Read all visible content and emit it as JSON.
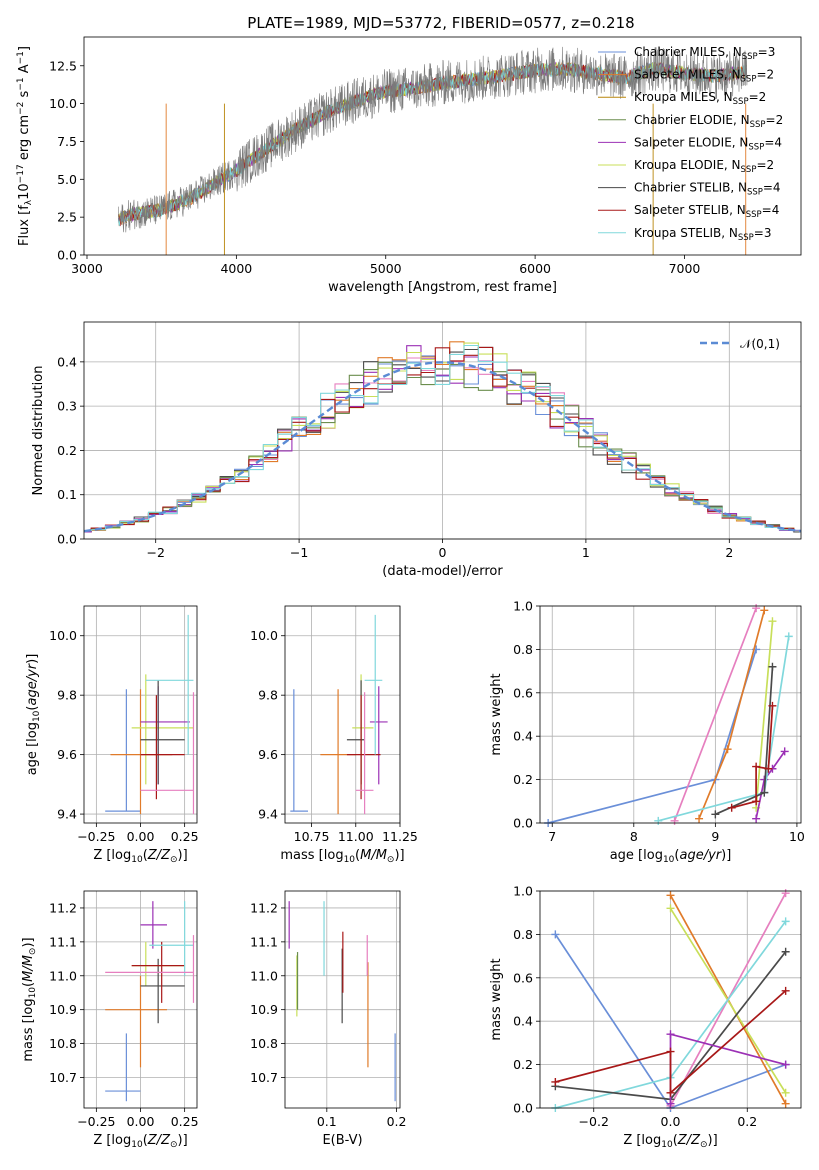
{
  "colors": {
    "Chabrier MILES": "#6a8fd8",
    "Salpeter MILES": "#e07b2a",
    "Kroupa MILES": "#b8860b",
    "Chabrier ELODIE": "#6b8e4e",
    "Salpeter ELODIE": "#9b30b5",
    "Kroupa ELODIE": "#c8df5a",
    "Chabrier STELIB": "#4a4a4a",
    "Salpeter STELIB": "#a81818",
    "Kroupa STELIB": "#80d8dc",
    "pink": "#e67fbf",
    "gaussian": "#5b8bd4"
  },
  "chart_data": [
    {
      "id": "spectrum",
      "type": "line",
      "title": "PLATE=1989, MJD=53772, FIBERID=0577, z=0.218",
      "xlabel": "wavelength [Angstrom, rest frame]",
      "ylabel": "Flux [f_λ10⁻¹⁷ erg cm⁻² s⁻¹ A⁻¹]",
      "xlim": [
        2980,
        7780
      ],
      "ylim": [
        0,
        14.4
      ],
      "xticks": [
        3000,
        4000,
        5000,
        6000,
        7000
      ],
      "yticks": [
        0.0,
        2.5,
        5.0,
        7.5,
        10.0,
        12.5
      ],
      "ytick_labels": [
        "0.0",
        "2.5",
        "5.0",
        "7.5",
        "10.0",
        "12.5"
      ],
      "x_range_data": [
        3210,
        7420
      ],
      "continuum_x": [
        3210,
        3300,
        3500,
        3700,
        3900,
        4000,
        4200,
        4400,
        4600,
        4800,
        5000,
        5200,
        5400,
        5600,
        5800,
        6000,
        6200,
        6400,
        6600,
        6800,
        7000,
        7200,
        7420
      ],
      "continuum_y": [
        2.3,
        2.7,
        3.0,
        3.8,
        5.0,
        5.6,
        7.0,
        8.3,
        9.4,
        10.2,
        10.8,
        11.0,
        11.4,
        11.6,
        11.9,
        12.2,
        12.3,
        12.0,
        11.7,
        12.3,
        12.0,
        11.8,
        12.1
      ],
      "legend": [
        {
          "label": "Chabrier MILES, N",
          "sub": "SSP",
          "tail": "=3",
          "color_key": "Chabrier MILES"
        },
        {
          "label": "Salpeter MILES, N",
          "sub": "SSP",
          "tail": "=2",
          "color_key": "Salpeter MILES"
        },
        {
          "label": "Kroupa MILES, N",
          "sub": "SSP",
          "tail": "=2",
          "color_key": "Kroupa MILES"
        },
        {
          "label": "Chabrier ELODIE, N",
          "sub": "SSP",
          "tail": "=2",
          "color_key": "Chabrier ELODIE"
        },
        {
          "label": "Salpeter ELODIE, N",
          "sub": "SSP",
          "tail": "=4",
          "color_key": "Salpeter ELODIE"
        },
        {
          "label": "Kroupa ELODIE, N",
          "sub": "SSP",
          "tail": "=2",
          "color_key": "Kroupa ELODIE"
        },
        {
          "label": "Chabrier STELIB, N",
          "sub": "SSP",
          "tail": "=4",
          "color_key": "Chabrier STELIB"
        },
        {
          "label": "Salpeter STELIB, N",
          "sub": "SSP",
          "tail": "=4",
          "color_key": "Salpeter STELIB"
        },
        {
          "label": "Kroupa STELIB, N",
          "sub": "SSP",
          "tail": "=3",
          "color_key": "Kroupa STELIB"
        }
      ]
    },
    {
      "id": "residuals",
      "type": "line",
      "xlabel": "(data-model)/error",
      "ylabel": "Normed distribution",
      "xlim": [
        -2.5,
        2.5
      ],
      "ylim": [
        0,
        0.49
      ],
      "xticks": [
        -2,
        -1,
        0,
        1,
        2
      ],
      "xtick_labels": [
        "−2",
        "−1",
        "0",
        "1",
        "2"
      ],
      "yticks": [
        0.0,
        0.1,
        0.2,
        0.3,
        0.4
      ],
      "ytick_labels": [
        "0.0",
        "0.1",
        "0.2",
        "0.3",
        "0.4"
      ],
      "grid": true,
      "legend": "𝒩(0,1)",
      "bin_width": 0.1
    },
    {
      "id": "age_vs_Z",
      "type": "scatter",
      "xlabel": "Z [log10(Z/Z☉)]",
      "ylabel": "age  [log10(age/yr)]",
      "xlim": [
        -0.32,
        0.32
      ],
      "ylim": [
        9.37,
        10.1
      ],
      "xticks": [
        -0.25,
        0.0,
        0.25
      ],
      "xtick_labels": [
        "−0.25",
        "0.00",
        "0.25"
      ],
      "yticks": [
        9.4,
        9.6,
        9.8,
        10.0
      ],
      "ytick_labels": [
        "9.4",
        "9.6",
        "9.8",
        "10.0"
      ],
      "points": [
        {
          "c": "Chabrier MILES",
          "x": -0.08,
          "xlo": -0.2,
          "xhi": 0.0,
          "y": 9.41,
          "ylo": 9.41,
          "yhi": 9.82
        },
        {
          "c": "Salpeter MILES",
          "x": 0.0,
          "xlo": -0.17,
          "xhi": 0.18,
          "y": 9.6,
          "ylo": 9.4,
          "yhi": 9.82
        },
        {
          "c": "Kroupa ELODIE",
          "x": 0.03,
          "xlo": -0.05,
          "xhi": 0.3,
          "y": 9.69,
          "ylo": 9.5,
          "yhi": 9.87
        },
        {
          "c": "Salpeter ELODIE",
          "x": 0.1,
          "xlo": -0.0,
          "xhi": 0.28,
          "y": 9.71,
          "ylo": 9.5,
          "yhi": 9.83
        },
        {
          "c": "Chabrier STELIB",
          "x": 0.1,
          "xlo": 0.0,
          "xhi": 0.25,
          "y": 9.65,
          "ylo": 9.5,
          "yhi": 9.85
        },
        {
          "c": "Salpeter STELIB",
          "x": 0.09,
          "xlo": -0.0,
          "xhi": 0.25,
          "y": 9.6,
          "ylo": 9.45,
          "yhi": 9.8
        },
        {
          "c": "Kroupa STELIB",
          "x": 0.27,
          "xlo": 0.03,
          "xhi": 0.3,
          "y": 9.85,
          "ylo": 9.6,
          "yhi": 10.07
        },
        {
          "c": "pink",
          "x": 0.3,
          "xlo": -0.0,
          "xhi": 0.3,
          "y": 9.48,
          "ylo": 9.4,
          "yhi": 9.81
        }
      ]
    },
    {
      "id": "age_vs_mass",
      "type": "scatter",
      "xlabel": "mass [log10(M/M☉)]",
      "ylabel": "",
      "xlim": [
        10.6,
        11.25
      ],
      "ylim": [
        9.37,
        10.1
      ],
      "xticks": [
        10.75,
        11.0,
        11.25
      ],
      "xtick_labels": [
        "10.75",
        "11.00",
        "11.25"
      ],
      "yticks": [
        9.4,
        9.6,
        9.8,
        10.0
      ],
      "ytick_labels": [
        "9.4",
        "9.6",
        "9.8",
        "10.0"
      ],
      "points": [
        {
          "c": "Chabrier MILES",
          "x": 10.65,
          "xlo": 10.63,
          "xhi": 10.73,
          "y": 9.41,
          "ylo": 9.41,
          "yhi": 9.82
        },
        {
          "c": "Salpeter MILES",
          "x": 10.9,
          "xlo": 10.8,
          "xhi": 11.0,
          "y": 9.6,
          "ylo": 9.4,
          "yhi": 9.82
        },
        {
          "c": "Kroupa ELODIE",
          "x": 11.03,
          "xlo": 10.98,
          "xhi": 11.1,
          "y": 9.69,
          "ylo": 9.5,
          "yhi": 9.87
        },
        {
          "c": "Salpeter ELODIE",
          "x": 11.13,
          "xlo": 11.08,
          "xhi": 11.18,
          "y": 9.71,
          "ylo": 9.5,
          "yhi": 9.83
        },
        {
          "c": "Chabrier STELIB",
          "x": 11.03,
          "xlo": 10.95,
          "xhi": 11.05,
          "y": 9.65,
          "ylo": 9.5,
          "yhi": 9.85
        },
        {
          "c": "Salpeter STELIB",
          "x": 11.03,
          "xlo": 10.95,
          "xhi": 11.14,
          "y": 9.6,
          "ylo": 9.45,
          "yhi": 9.8
        },
        {
          "c": "Kroupa STELIB",
          "x": 11.11,
          "xlo": 11.05,
          "xhi": 11.15,
          "y": 9.85,
          "ylo": 9.6,
          "yhi": 10.07
        },
        {
          "c": "pink",
          "x": 11.05,
          "xlo": 11.0,
          "xhi": 11.1,
          "y": 9.48,
          "ylo": 9.4,
          "yhi": 9.81
        }
      ]
    },
    {
      "id": "weight_vs_age",
      "type": "line",
      "xlabel": "age  [log10(age/yr)]",
      "ylabel": "mass weight",
      "xlim": [
        6.85,
        10.05
      ],
      "ylim": [
        0,
        1
      ],
      "xticks": [
        7,
        8,
        9,
        10
      ],
      "yticks": [
        0.0,
        0.2,
        0.4,
        0.6,
        0.8,
        1.0
      ],
      "ytick_labels": [
        "0.0",
        "0.2",
        "0.4",
        "0.6",
        "0.8",
        "1.0"
      ],
      "grid": true,
      "series": [
        {
          "c": "Chabrier MILES",
          "x": [
            6.95,
            9.0,
            9.5
          ],
          "y": [
            0.0,
            0.2,
            0.8
          ]
        },
        {
          "c": "Salpeter MILES",
          "x": [
            8.8,
            9.15,
            9.6
          ],
          "y": [
            0.02,
            0.34,
            0.98
          ]
        },
        {
          "c": "pink",
          "x": [
            8.5,
            9.5
          ],
          "y": [
            0.01,
            0.99
          ]
        },
        {
          "c": "Kroupa ELODIE",
          "x": [
            9.5,
            9.7
          ],
          "y": [
            0.07,
            0.93
          ]
        },
        {
          "c": "Salpeter ELODIE",
          "x": [
            9.5,
            9.6,
            9.7,
            9.85
          ],
          "y": [
            0.02,
            0.2,
            0.25,
            0.33
          ]
        },
        {
          "c": "Kroupa STELIB",
          "x": [
            8.3,
            9.6,
            9.9
          ],
          "y": [
            0.01,
            0.14,
            0.86
          ]
        },
        {
          "c": "Chabrier STELIB",
          "x": [
            9.0,
            9.6,
            9.7
          ],
          "y": [
            0.04,
            0.14,
            0.72
          ]
        },
        {
          "c": "Salpeter STELIB",
          "x": [
            9.2,
            9.5,
            9.5,
            9.65,
            9.7
          ],
          "y": [
            0.07,
            0.1,
            0.26,
            0.25,
            0.54
          ]
        }
      ]
    },
    {
      "id": "mass_vs_Z",
      "type": "scatter",
      "xlabel": "Z [log10(Z/Z☉)]",
      "ylabel": "mass [log10(M/M☉)]",
      "xlim": [
        -0.32,
        0.32
      ],
      "ylim": [
        10.61,
        11.25
      ],
      "xticks": [
        -0.25,
        0.0,
        0.25
      ],
      "xtick_labels": [
        "−0.25",
        "0.00",
        "0.25"
      ],
      "yticks": [
        10.7,
        10.8,
        10.9,
        11.0,
        11.1,
        11.2
      ],
      "ytick_labels": [
        "10.7",
        "10.8",
        "10.9",
        "11.0",
        "11.1",
        "11.2"
      ],
      "points": [
        {
          "c": "Chabrier MILES",
          "x": -0.08,
          "xlo": -0.2,
          "xhi": 0.0,
          "y": 10.66,
          "ylo": 10.63,
          "yhi": 10.83
        },
        {
          "c": "Salpeter MILES",
          "x": 0.0,
          "xlo": -0.2,
          "xhi": 0.15,
          "y": 10.9,
          "ylo": 10.73,
          "yhi": 11.0
        },
        {
          "c": "Kroupa ELODIE",
          "x": 0.03,
          "xlo": -0.05,
          "xhi": 0.25,
          "y": 11.03,
          "ylo": 10.97,
          "yhi": 11.1
        },
        {
          "c": "Salpeter ELODIE",
          "x": 0.07,
          "xlo": -0.0,
          "xhi": 0.15,
          "y": 11.15,
          "ylo": 11.08,
          "yhi": 11.22
        },
        {
          "c": "Chabrier STELIB",
          "x": 0.1,
          "xlo": 0.0,
          "xhi": 0.25,
          "y": 10.97,
          "ylo": 10.86,
          "yhi": 11.05
        },
        {
          "c": "Salpeter STELIB",
          "x": 0.12,
          "xlo": -0.05,
          "xhi": 0.25,
          "y": 11.03,
          "ylo": 10.92,
          "yhi": 11.1
        },
        {
          "c": "Kroupa STELIB",
          "x": 0.25,
          "xlo": 0.05,
          "xhi": 0.3,
          "y": 11.09,
          "ylo": 11.0,
          "yhi": 11.22
        },
        {
          "c": "pink",
          "x": 0.3,
          "xlo": -0.2,
          "xhi": 0.3,
          "y": 11.01,
          "ylo": 10.92,
          "yhi": 11.12
        }
      ]
    },
    {
      "id": "mass_vs_ebv",
      "type": "scatter",
      "xlabel": "E(B-V)",
      "ylabel": "",
      "xlim": [
        0.04,
        0.205
      ],
      "ylim": [
        10.61,
        11.25
      ],
      "xticks": [
        0.1,
        0.2
      ],
      "xtick_labels": [
        "0.1",
        "0.2"
      ],
      "yticks": [
        10.7,
        10.8,
        10.9,
        11.0,
        11.1,
        11.2
      ],
      "ytick_labels": [
        "10.7",
        "10.8",
        "10.9",
        "11.0",
        "11.1",
        "11.2"
      ],
      "points": [
        {
          "c": "Salpeter ELODIE",
          "x": 0.046,
          "y": 11.15,
          "ylo": 11.08,
          "yhi": 11.22
        },
        {
          "c": "Kroupa ELODIE",
          "x": 0.057,
          "y": 11.0,
          "ylo": 10.88,
          "yhi": 11.06
        },
        {
          "c": "Chabrier ELODIE",
          "x": 0.058,
          "y": 10.98,
          "ylo": 10.9,
          "yhi": 11.07
        },
        {
          "c": "Kroupa STELIB",
          "x": 0.096,
          "y": 11.1,
          "ylo": 11.0,
          "yhi": 11.22
        },
        {
          "c": "Chabrier STELIB",
          "x": 0.122,
          "y": 10.97,
          "ylo": 10.86,
          "yhi": 11.08
        },
        {
          "c": "Salpeter STELIB",
          "x": 0.123,
          "y": 11.03,
          "ylo": 10.95,
          "yhi": 11.13
        },
        {
          "c": "Salpeter MILES",
          "x": 0.159,
          "y": 10.9,
          "ylo": 10.73,
          "yhi": 11.04
        },
        {
          "c": "pink",
          "x": 0.158,
          "y": 11.06,
          "ylo": 11.0,
          "yhi": 11.12
        },
        {
          "c": "Chabrier MILES",
          "x": 0.198,
          "y": 10.7,
          "ylo": 10.63,
          "yhi": 10.83
        }
      ]
    },
    {
      "id": "weight_vs_Z",
      "type": "line",
      "xlabel": "Z [log10(Z/Z☉)]",
      "ylabel": "mass weight",
      "xlim": [
        -0.34,
        0.34
      ],
      "ylim": [
        0,
        1
      ],
      "xticks": [
        -0.2,
        0.0,
        0.2
      ],
      "xtick_labels": [
        "−0.2",
        "0.0",
        "0.2"
      ],
      "yticks": [
        0.0,
        0.2,
        0.4,
        0.6,
        0.8,
        1.0
      ],
      "ytick_labels": [
        "0.0",
        "0.2",
        "0.4",
        "0.6",
        "0.8",
        "1.0"
      ],
      "grid": true,
      "series": [
        {
          "c": "Chabrier MILES",
          "x": [
            -0.3,
            0.0,
            0.3
          ],
          "y": [
            0.8,
            0.0,
            0.2
          ]
        },
        {
          "c": "Salpeter MILES",
          "x": [
            0.0,
            0.3
          ],
          "y": [
            0.98,
            0.02
          ]
        },
        {
          "c": "Kroupa ELODIE",
          "x": [
            0.0,
            0.3
          ],
          "y": [
            0.92,
            0.07
          ]
        },
        {
          "c": "pink",
          "x": [
            0.0,
            0.3
          ],
          "y": [
            0.01,
            0.99
          ]
        },
        {
          "c": "Kroupa STELIB",
          "x": [
            -0.3,
            0.0,
            0.3
          ],
          "y": [
            0.0,
            0.14,
            0.86
          ]
        },
        {
          "c": "Chabrier STELIB",
          "x": [
            -0.3,
            0.0,
            0.3
          ],
          "y": [
            0.1,
            0.04,
            0.72
          ]
        },
        {
          "c": "Salpeter ELODIE",
          "x": [
            0.0,
            0.0,
            0.3
          ],
          "y": [
            0.02,
            0.34,
            0.2
          ]
        },
        {
          "c": "Salpeter STELIB",
          "x": [
            -0.3,
            0.0,
            0.0,
            0.3
          ],
          "y": [
            0.12,
            0.26,
            0.07,
            0.54
          ]
        }
      ]
    }
  ]
}
